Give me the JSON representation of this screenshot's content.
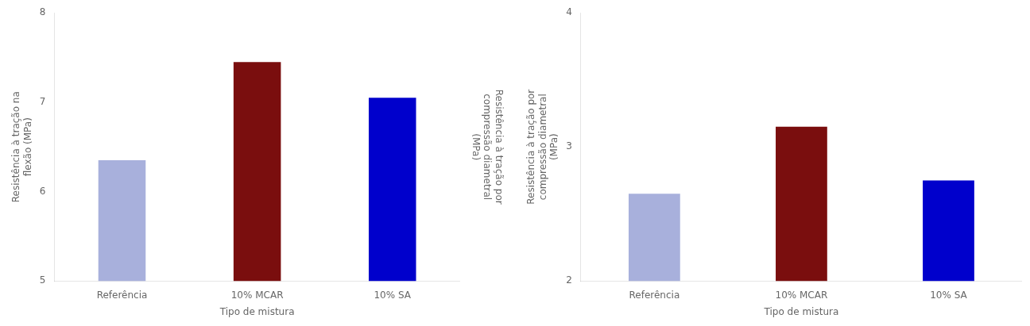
{
  "chart_data": [
    {
      "type": "bar",
      "categories": [
        "Referência",
        "10% MCAR",
        "10% SA"
      ],
      "values": [
        6.35,
        7.45,
        7.05
      ],
      "colors": [
        "#a8b0dc",
        "#7a0e0e",
        "#0000cc"
      ],
      "xlabel": "Tipo de mistura",
      "ylabel": "Resistência à tração na\nflexão (MPa)",
      "y2label": "Resistência à tração por\ncompressão diametral\n(MPa)",
      "ylim": [
        5,
        8
      ],
      "yticks": [
        5,
        6,
        7,
        8
      ],
      "grid": false
    },
    {
      "type": "bar",
      "categories": [
        "Referência",
        "10% MCAR",
        "10% SA"
      ],
      "values": [
        2.65,
        3.15,
        2.75
      ],
      "colors": [
        "#a8b0dc",
        "#7a0e0e",
        "#0000cc"
      ],
      "xlabel": "Tipo de mistura",
      "ylabel": "Resistência à tração por\ncompressão diametral\n(MPa)",
      "ylim": [
        2,
        4
      ],
      "yticks": [
        2,
        3,
        4
      ],
      "grid": false
    }
  ]
}
